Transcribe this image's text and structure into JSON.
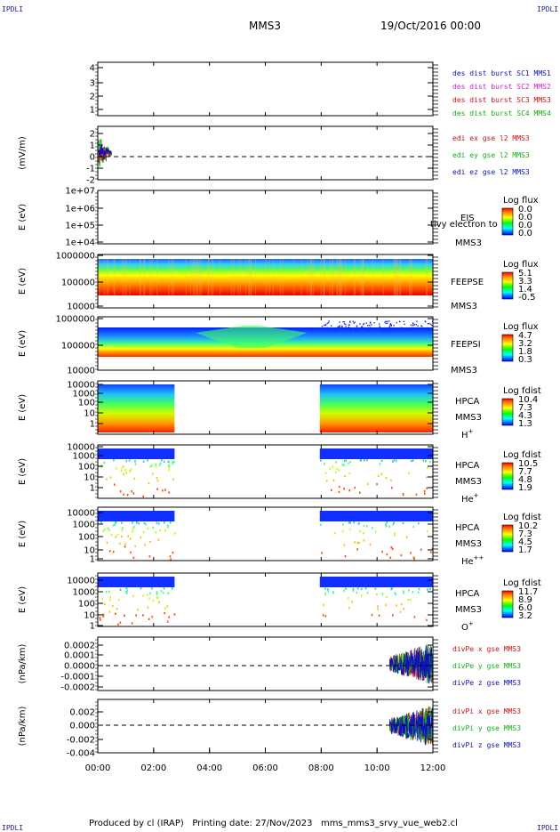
{
  "corner_label": "IPDLI",
  "header": {
    "title": "MMS3",
    "date": "19/Oct/2016 00:00"
  },
  "footer": "Produced by cl (IRAP)   Printing date: 27/Nov/2023   mms_mms3_srvy_vue_web2.cl",
  "chart_data": {
    "type": "multi-panel time series",
    "x_ticks": [
      "00:00",
      "02:00",
      "04:00",
      "06:00",
      "08:00",
      "10:00",
      "12:00"
    ],
    "x_range": [
      "00:00",
      "12:00"
    ],
    "panels": [
      {
        "id": "des-dist",
        "ylabel": "",
        "yticks": [
          "4",
          "3",
          "2",
          "1"
        ],
        "legend": [
          {
            "text": "des dist burst SC1 MMS1",
            "color": "#1010c0"
          },
          {
            "text": "des dist burst SC2 MMS2",
            "color": "#d020d0"
          },
          {
            "text": "des dist burst SC3 MMS3",
            "color": "#d01010"
          },
          {
            "text": "des dist burst SC4 MMS4",
            "color": "#10b010"
          }
        ]
      },
      {
        "id": "edi-e",
        "ylabel": "(mV/m)",
        "yticks": [
          "2",
          "1",
          "0",
          "-1",
          "-2"
        ],
        "dashed_zero": true,
        "legend": [
          {
            "text": "edi ex gse l2 MMS3",
            "color": "#d01010"
          },
          {
            "text": "edi ey gse l2 MMS3",
            "color": "#10b010"
          },
          {
            "text": "edi ez gse l2 MMS3",
            "color": "#1010c0"
          }
        ]
      },
      {
        "id": "eis",
        "ylabel": "E (eV)",
        "yticks": [
          "1e+07",
          "1e+06",
          "1e+05",
          "1e+04"
        ],
        "instrument": [
          "EIS",
          "MMS3"
        ],
        "overlay_text": "tivy electron to",
        "colorbar": {
          "title": "Log flux",
          "labels": [
            "0.0",
            "0.0",
            "0.0",
            "0.0"
          ]
        }
      },
      {
        "id": "feeps-e",
        "ylabel": "E (eV)",
        "yticks": [
          "1000000",
          "100000",
          "10000"
        ],
        "instrument": [
          "FEEPSE",
          "MMS3"
        ],
        "colorbar": {
          "title": "Log flux",
          "labels": [
            "5.1",
            "3.3",
            "1.4",
            "-0.5"
          ]
        }
      },
      {
        "id": "feeps-i",
        "ylabel": "E (eV)",
        "yticks": [
          "1000000",
          "100000",
          "10000"
        ],
        "instrument": [
          "FEEPSI",
          "MMS3"
        ],
        "colorbar": {
          "title": "Log flux",
          "labels": [
            "4.7",
            "3.2",
            "1.8",
            "0.3"
          ]
        }
      },
      {
        "id": "hpca-h",
        "ylabel": "E (eV)",
        "yticks": [
          "10000",
          "1000",
          "100",
          "10",
          "1"
        ],
        "instrument": [
          "HPCA",
          "MMS3"
        ],
        "species": "H",
        "species_sup": "+",
        "colorbar": {
          "title": "Log fdist",
          "labels": [
            "10.4",
            "7.3",
            "4.3",
            "1.3"
          ]
        }
      },
      {
        "id": "hpca-he",
        "ylabel": "E (eV)",
        "yticks": [
          "10000",
          "1000",
          "100",
          "10",
          "1"
        ],
        "instrument": [
          "HPCA",
          "MMS3"
        ],
        "species": "He",
        "species_sup": "+",
        "colorbar": {
          "title": "Log fdist",
          "labels": [
            "10.5",
            "7.7",
            "4.8",
            "1.9"
          ]
        }
      },
      {
        "id": "hpca-he2",
        "ylabel": "E (eV)",
        "yticks": [
          "10000",
          "1000",
          "100",
          "10",
          "1"
        ],
        "instrument": [
          "HPCA",
          "MMS3"
        ],
        "species": "He",
        "species_sup": "++",
        "colorbar": {
          "title": "Log fdist",
          "labels": [
            "10.2",
            "7.3",
            "4.5",
            "1.7"
          ]
        }
      },
      {
        "id": "hpca-o",
        "ylabel": "E (eV)",
        "yticks": [
          "10000",
          "1000",
          "100",
          "10",
          "1"
        ],
        "instrument": [
          "HPCA",
          "MMS3"
        ],
        "species": "O",
        "species_sup": "+",
        "colorbar": {
          "title": "Log fdist",
          "labels": [
            "11.7",
            "8.9",
            "6.0",
            "3.2"
          ]
        }
      },
      {
        "id": "divpe",
        "ylabel": "(nPa/km)",
        "yticks": [
          "0.0002",
          "0.0001",
          "0.0000",
          "-0.0001",
          "-0.0002"
        ],
        "dashed_zero": true,
        "legend": [
          {
            "text": "divPe x gse MMS3",
            "color": "#d01010"
          },
          {
            "text": "divPe y gse MMS3",
            "color": "#10b010"
          },
          {
            "text": "divPe z gse MMS3",
            "color": "#1010c0"
          }
        ]
      },
      {
        "id": "divpi",
        "ylabel": "(nPa/km)",
        "yticks": [
          "0.002",
          "0.000",
          "-0.002",
          "-0.004"
        ],
        "dashed_zero": true,
        "legend": [
          {
            "text": "divPi x gse MMS3",
            "color": "#d01010"
          },
          {
            "text": "divPi y gse MMS3",
            "color": "#10b010"
          },
          {
            "text": "divPi z gse MMS3",
            "color": "#1010c0"
          }
        ]
      }
    ]
  }
}
